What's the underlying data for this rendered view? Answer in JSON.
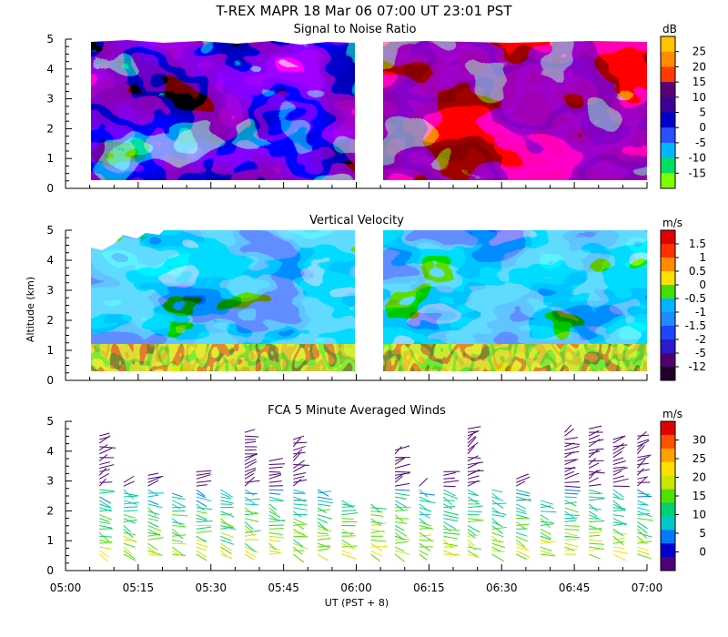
{
  "header": {
    "title": "T-REX   MAPR 18 Mar 06   07:00 UT   23:01   PST"
  },
  "time_axis": {
    "tick_labels": [
      "05:00",
      "05:15",
      "05:30",
      "05:45",
      "06:00",
      "06:15",
      "06:30",
      "06:45",
      "07:00"
    ],
    "label": "UT  (PST + 8)"
  },
  "chart_data": [
    {
      "type": "heatmap",
      "title": "Signal to Noise Ratio",
      "ylabel": "",
      "ylim": [
        0,
        5
      ],
      "yticks": [
        "0",
        "1",
        "2",
        "3",
        "4",
        "5"
      ],
      "xrange_minutes": [
        0,
        120
      ],
      "data_gaps_minutes": [
        [
          56,
          62
        ]
      ],
      "colorbar": {
        "unit": "dB",
        "levels": [
          -15,
          -10,
          -5,
          0,
          5,
          10,
          15,
          20,
          25
        ],
        "labels": [
          "25",
          "20",
          "15",
          "10",
          "5",
          "0",
          "-5",
          "-10",
          "-15"
        ],
        "colors": [
          "#80ff00",
          "#00e060",
          "#00b8ff",
          "#2a50ff",
          "#0000c8",
          "#3c0096",
          "#5a0078",
          "#ff3c00",
          "#ff8c00",
          "#ffc400"
        ]
      }
    },
    {
      "type": "heatmap",
      "title": "Vertical Velocity",
      "ylabel": "Altitude (km)",
      "ylim": [
        0,
        5
      ],
      "yticks": [
        "0",
        "1",
        "2",
        "3",
        "4",
        "5"
      ],
      "xrange_minutes": [
        0,
        120
      ],
      "data_gaps_minutes": [
        [
          56,
          62
        ]
      ],
      "colorbar": {
        "unit": "m/s",
        "levels": [
          -12,
          -5,
          -2,
          -1.5,
          -1,
          -0.5,
          0,
          0.5,
          1,
          1.5
        ],
        "labels": [
          "1.5",
          "1",
          "0.5",
          "0",
          "-0.5",
          "-1",
          "-1.5",
          "-2",
          "-5",
          "-12"
        ],
        "colors": [
          "#200028",
          "#50006e",
          "#2a1cc8",
          "#1e46ff",
          "#1e8cff",
          "#00b4ff",
          "#40e000",
          "#ffe000",
          "#ff8c00",
          "#ff3000",
          "#e00000"
        ]
      }
    },
    {
      "type": "scatter",
      "title": "FCA 5 Minute Averaged Winds",
      "ylabel": "",
      "ylim": [
        0,
        5
      ],
      "yticks": [
        "0",
        "1",
        "2",
        "3",
        "4",
        "5"
      ],
      "xrange_minutes": [
        0,
        120
      ],
      "profile_times_minutes": [
        7,
        12,
        17,
        22,
        27,
        32,
        37,
        42,
        47,
        52,
        57,
        63,
        68,
        73,
        78,
        83,
        88,
        93,
        98,
        103,
        108,
        113,
        118
      ],
      "colorbar": {
        "unit": "m/s",
        "levels": [
          0,
          5,
          10,
          15,
          20,
          25,
          30
        ],
        "labels": [
          "30",
          "25",
          "20",
          "15",
          "10",
          "5",
          "0"
        ],
        "colors": [
          "#500078",
          "#0000d0",
          "#0078ff",
          "#00c8c8",
          "#00d070",
          "#50e000",
          "#c8e600",
          "#ffe000",
          "#ffa000",
          "#ff5000",
          "#e00000"
        ]
      }
    }
  ]
}
